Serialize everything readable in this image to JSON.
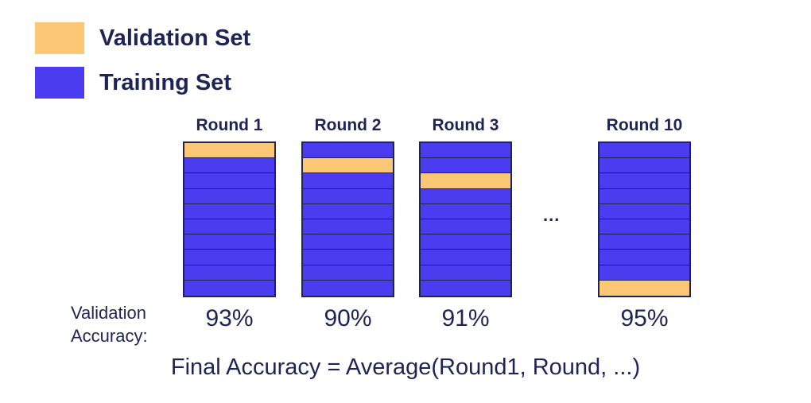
{
  "colors": {
    "validation": "#fdc875",
    "training": "#4c3cf0",
    "outline": "#1f2456",
    "text": "#1f2456"
  },
  "legend": {
    "validation_label": "Validation Set",
    "training_label": "Training Set"
  },
  "folds_per_round": 10,
  "rounds": [
    {
      "label": "Round 1",
      "validation_fold": 1,
      "accuracy": "93%"
    },
    {
      "label": "Round 2",
      "validation_fold": 2,
      "accuracy": "90%"
    },
    {
      "label": "Round 3",
      "validation_fold": 3,
      "accuracy": "91%"
    },
    {
      "label": "Round 10",
      "validation_fold": 10,
      "accuracy": "95%"
    }
  ],
  "ellipsis": "...",
  "accuracy_caption": {
    "line1": "Validation",
    "line2": "Accuracy:"
  },
  "final_text": "Final Accuracy = Average(Round1, Round, ...)"
}
